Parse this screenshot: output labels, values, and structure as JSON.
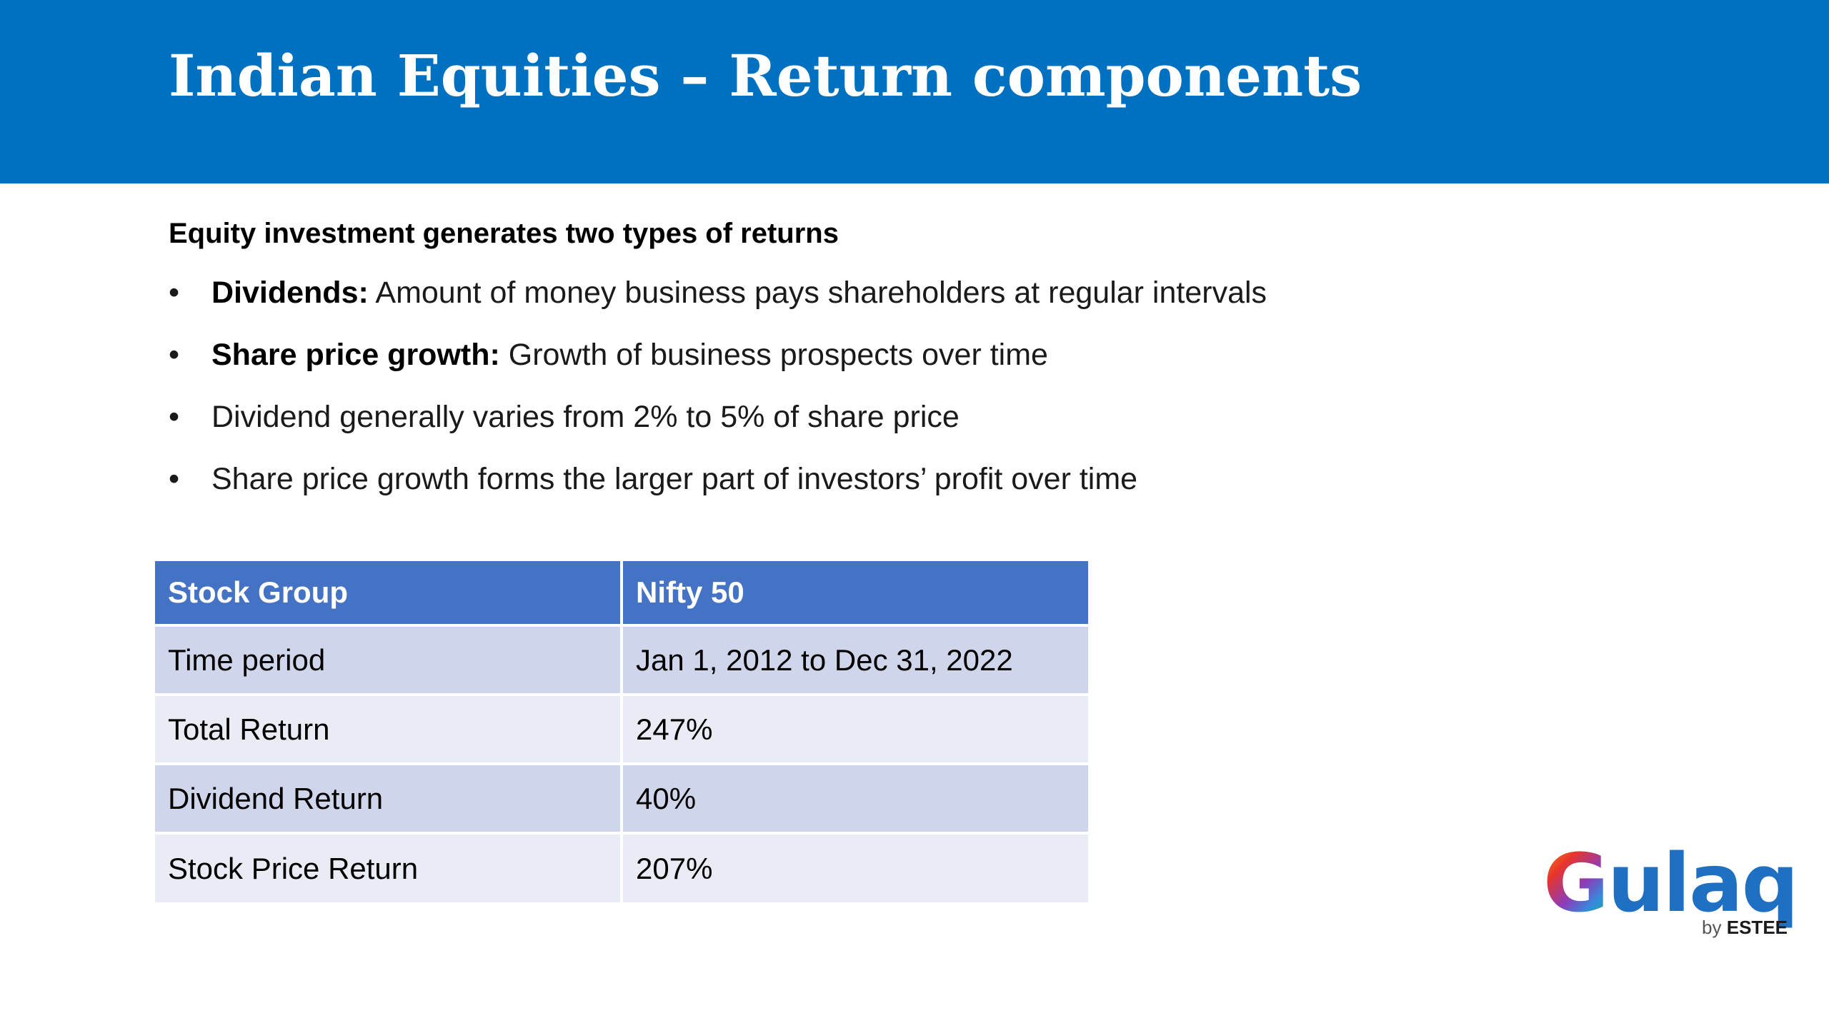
{
  "slide": {
    "title": "Indian Equities – Return components",
    "subtitle": "Equity investment generates two types of returns"
  },
  "bullets": [
    {
      "lead": "Dividends:",
      "text": " Amount of money business pays shareholders at regular intervals"
    },
    {
      "lead": "Share price growth:",
      "text": " Growth of business prospects over time"
    },
    {
      "lead": "",
      "text": "Dividend generally varies from 2% to 5% of share price"
    },
    {
      "lead": "",
      "text": "Share price growth forms the larger part of investors’ profit over time"
    }
  ],
  "bullet_symbol": "•",
  "table": {
    "headers": [
      "Stock Group",
      "Nifty 50"
    ],
    "rows": [
      [
        "Time period",
        "Jan 1, 2012 to Dec 31, 2022"
      ],
      [
        "Total Return",
        "247%"
      ],
      [
        "Dividend Return",
        "40%"
      ],
      [
        "Stock Price Return",
        "207%"
      ]
    ]
  },
  "logo": {
    "word_first": "G",
    "word_rest": "ulaq",
    "by": "by",
    "brand": "ESTEE"
  },
  "colors": {
    "header_band": "#0070C0",
    "table_header": "#4472C4",
    "table_row_odd": "#CFD5EA",
    "table_row_even": "#E9EBF5"
  }
}
